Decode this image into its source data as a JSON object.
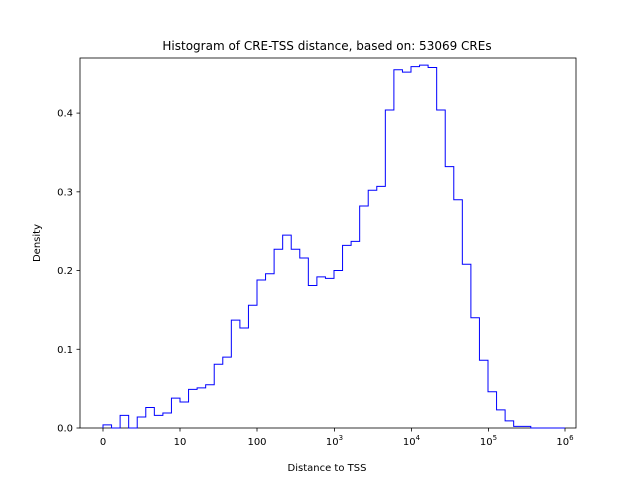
{
  "chart_data": {
    "type": "histogram",
    "title": "Histogram of CRE-TSS distance, based on: 53069 CREs",
    "xlabel": "Distance to TSS",
    "ylabel": "Density",
    "ylim": [
      0,
      0.47
    ],
    "grid": false,
    "legend": "none",
    "line_color": "#0000ff",
    "x_scale": "symlog-like (bins start at 0)",
    "x_ticks": [
      {
        "label": "0",
        "base": "",
        "exp": ""
      },
      {
        "label": "10",
        "base": "",
        "exp": ""
      },
      {
        "label": "100",
        "base": "",
        "exp": ""
      },
      {
        "label": "",
        "base": "10",
        "exp": "3"
      },
      {
        "label": "",
        "base": "10",
        "exp": "4"
      },
      {
        "label": "",
        "base": "10",
        "exp": "5"
      },
      {
        "label": "",
        "base": "10",
        "exp": "6"
      }
    ],
    "y_ticks": [
      {
        "value": 0.0,
        "label": "0.0"
      },
      {
        "value": 0.1,
        "label": "0.1"
      },
      {
        "value": 0.2,
        "label": "0.2"
      },
      {
        "value": 0.3,
        "label": "0.3"
      },
      {
        "value": 0.4,
        "label": "0.4"
      }
    ],
    "bins_range": [
      0,
      6.0
    ],
    "bin_count": 54,
    "densities": [
      0.004,
      0.0,
      0.016,
      0.0,
      0.014,
      0.026,
      0.016,
      0.019,
      0.038,
      0.033,
      0.049,
      0.051,
      0.055,
      0.081,
      0.09,
      0.137,
      0.127,
      0.156,
      0.188,
      0.196,
      0.227,
      0.245,
      0.227,
      0.216,
      0.181,
      0.192,
      0.19,
      0.2,
      0.232,
      0.237,
      0.282,
      0.302,
      0.307,
      0.404,
      0.455,
      0.452,
      0.459,
      0.461,
      0.458,
      0.404,
      0.332,
      0.29,
      0.208,
      0.14,
      0.086,
      0.046,
      0.023,
      0.009,
      0.002,
      0.002,
      0.0,
      0.0,
      0.0,
      0.0
    ]
  }
}
